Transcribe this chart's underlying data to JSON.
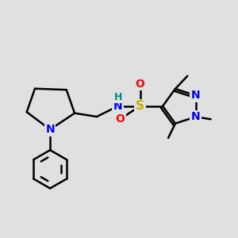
{
  "bg_color": "#e0e0e0",
  "bond_color": "#000000",
  "bond_width": 1.8,
  "atom_colors": {
    "N": "#0000ee",
    "S": "#ccaa00",
    "O": "#ff0000",
    "H": "#008888",
    "C": "#000000"
  },
  "font_size_atoms": 10,
  "font_size_methyl": 8.5
}
